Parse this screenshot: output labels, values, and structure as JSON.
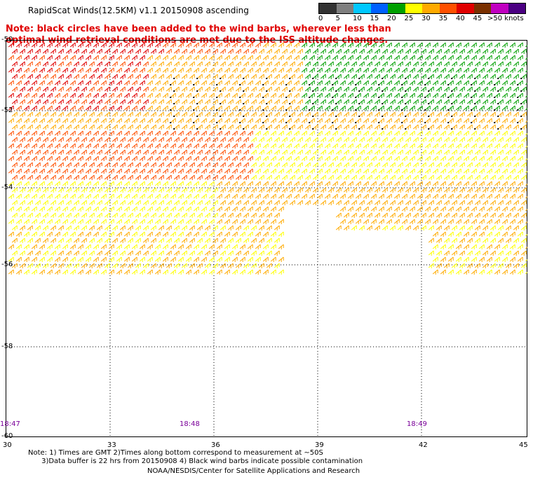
{
  "header": {
    "title": "RapidScat Winds(12.5KM) v1.1 20150908 ascending",
    "note": "Note: black circles have been added to the wind barbs, wherever less than optimal wind retrieval conditions are met due to the ISS altitude changes."
  },
  "legend": {
    "labels": [
      "0",
      "5",
      "10",
      "15",
      "20",
      "25",
      "30",
      "35",
      "40",
      "45",
      ">50 knots"
    ],
    "colors": [
      "#333333",
      "#7f7f7f",
      "#00c8ff",
      "#0060ff",
      "#00a000",
      "#ffff00",
      "#ffaa00",
      "#ff5000",
      "#e00000",
      "#7a3000",
      "#c000c0",
      "#4b0082"
    ]
  },
  "map": {
    "x_ticks": [
      "30",
      "33",
      "36",
      "39",
      "42",
      "45"
    ],
    "y_ticks": [
      "-50",
      "-52",
      "-54",
      "-56",
      "-58",
      "-60"
    ],
    "times": [
      "18:47",
      "18:48",
      "18:49"
    ],
    "grid": true
  },
  "footer": {
    "note_line1": "Note: 1) Times are GMT 2)Times along bottom correspond to measurement at ~50S",
    "note_line2": "3)Data buffer is 22 hrs from 20150908 4) Black wind barbs indicate possible contamination",
    "credit": "NOAA/NESDIS/Center for Satellite Applications and Research"
  }
}
